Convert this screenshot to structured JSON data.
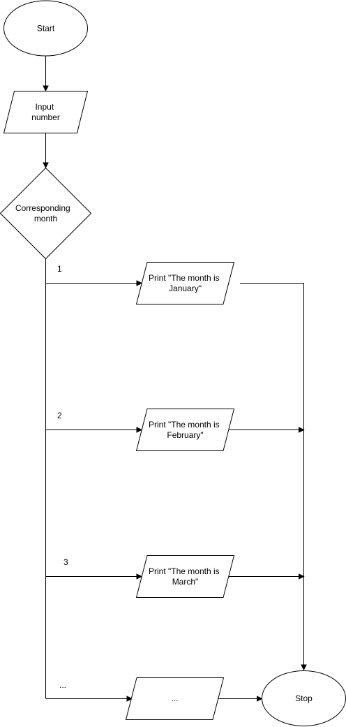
{
  "nodes": {
    "start": {
      "shape": "ellipse",
      "label": "Start"
    },
    "input": {
      "shape": "parallelogram",
      "lines": [
        "Input",
        "number"
      ]
    },
    "decision": {
      "shape": "diamond",
      "lines": [
        "Corresponding",
        "month"
      ]
    },
    "print_january": {
      "shape": "parallelogram",
      "lines": [
        "Print \"The month is",
        "January\""
      ]
    },
    "print_february": {
      "shape": "parallelogram",
      "lines": [
        "Print \"The month is",
        "February\""
      ]
    },
    "print_march": {
      "shape": "parallelogram",
      "lines": [
        "Print \"The month is",
        "March\""
      ]
    },
    "print_more": {
      "shape": "parallelogram",
      "label": "..."
    },
    "stop": {
      "shape": "ellipse",
      "label": "Stop"
    }
  },
  "branch_labels": {
    "one": "1",
    "two": "2",
    "three": "3",
    "more": "..."
  },
  "connections": [
    {
      "from": "start",
      "to": "input"
    },
    {
      "from": "input",
      "to": "decision"
    },
    {
      "from": "decision",
      "to": "print_january",
      "label": "1"
    },
    {
      "from": "decision",
      "to": "print_february",
      "label": "2"
    },
    {
      "from": "decision",
      "to": "print_march",
      "label": "3"
    },
    {
      "from": "decision",
      "to": "print_more",
      "label": "..."
    },
    {
      "from": "print_january",
      "to": "stop"
    },
    {
      "from": "print_february",
      "to": "stop"
    },
    {
      "from": "print_march",
      "to": "stop"
    },
    {
      "from": "print_more",
      "to": "stop"
    }
  ],
  "colors": {
    "stroke": "#000000",
    "fill": "#ffffff",
    "text": "#000000"
  }
}
